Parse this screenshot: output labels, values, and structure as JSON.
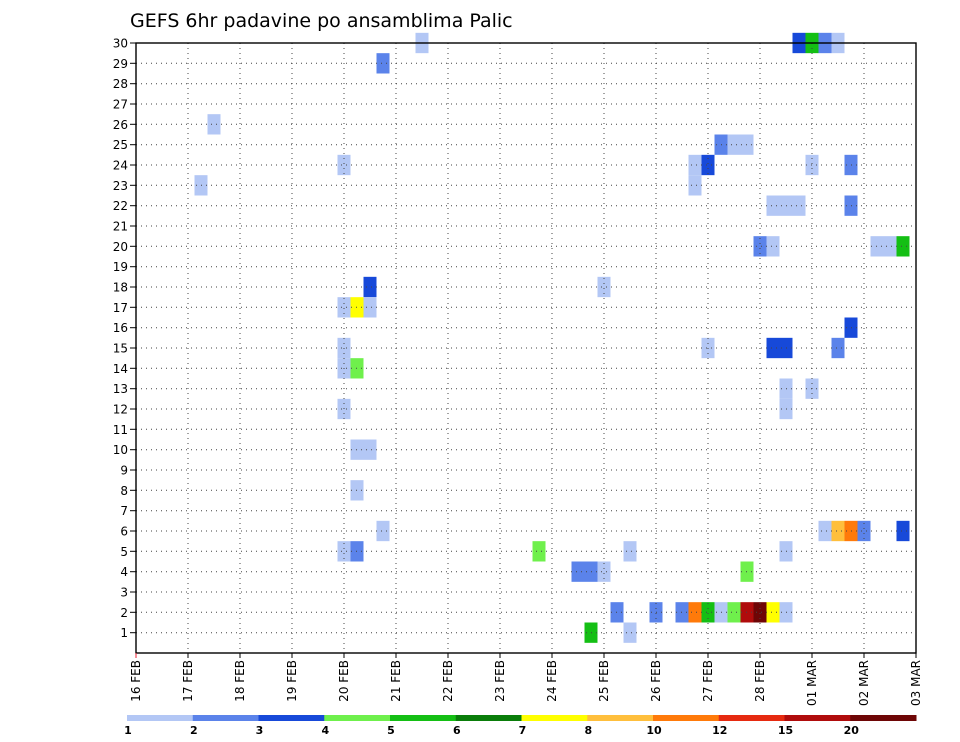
{
  "chart_data": {
    "type": "heatmap",
    "title": "GEFS 6hr padavine po ansamblima Palic",
    "x_start": "16 FEB",
    "x_end": "03 MAR",
    "x_tick_labels": [
      "16 FEB",
      "17 FEB",
      "18 FEB",
      "19 FEB",
      "20 FEB",
      "21 FEB",
      "22 FEB",
      "23 FEB",
      "24 FEB",
      "25 FEB",
      "26 FEB",
      "27 FEB",
      "28 FEB",
      "01 MAR",
      "02 MAR",
      "03 MAR"
    ],
    "y_tick_labels": [
      "1",
      "2",
      "3",
      "4",
      "5",
      "6",
      "7",
      "8",
      "9",
      "10",
      "11",
      "12",
      "13",
      "14",
      "15",
      "16",
      "17",
      "18",
      "19",
      "20",
      "21",
      "22",
      "23",
      "24",
      "25",
      "26",
      "27",
      "28",
      "29",
      "30"
    ],
    "ylim": [
      0,
      30
    ],
    "grid": true,
    "legend": {
      "placement": "bottom",
      "boundaries": [
        "1",
        "2",
        "3",
        "4",
        "5",
        "6",
        "7",
        "8",
        "10",
        "12",
        "15",
        "20"
      ],
      "colors": [
        "#b3c7f5",
        "#5b83ea",
        "#1749d9",
        "#6ff04c",
        "#14bf14",
        "#0a7d0a",
        "#ffff00",
        "#ffbf3c",
        "#ff7a0a",
        "#e62a10",
        "#b00c0c",
        "#6e0606"
      ]
    },
    "cells": [
      {
        "t": 22,
        "m": 30,
        "c": 0
      },
      {
        "t": 51,
        "m": 30,
        "c": 2
      },
      {
        "t": 52,
        "m": 30,
        "c": 4
      },
      {
        "t": 53,
        "m": 30,
        "c": 1
      },
      {
        "t": 54,
        "m": 30,
        "c": 0
      },
      {
        "t": 19,
        "m": 29,
        "c": 1
      },
      {
        "t": 6,
        "m": 26,
        "c": 0
      },
      {
        "t": 45,
        "m": 25,
        "c": 1
      },
      {
        "t": 46,
        "m": 25,
        "c": 0
      },
      {
        "t": 47,
        "m": 25,
        "c": 0
      },
      {
        "t": 16,
        "m": 24,
        "c": 0
      },
      {
        "t": 43,
        "m": 24,
        "c": 0
      },
      {
        "t": 44,
        "m": 24,
        "c": 2
      },
      {
        "t": 52,
        "m": 24,
        "c": 0
      },
      {
        "t": 55,
        "m": 24,
        "c": 1
      },
      {
        "t": 5,
        "m": 23,
        "c": 0
      },
      {
        "t": 43,
        "m": 23,
        "c": 0
      },
      {
        "t": 50,
        "m": 22,
        "c": 0
      },
      {
        "t": 51,
        "m": 22,
        "c": 0
      },
      {
        "t": 55,
        "m": 22,
        "c": 1
      },
      {
        "t": 49,
        "m": 22,
        "c": 0
      },
      {
        "t": 48,
        "m": 20,
        "c": 1
      },
      {
        "t": 49,
        "m": 20,
        "c": 0
      },
      {
        "t": 57,
        "m": 20,
        "c": 0
      },
      {
        "t": 58,
        "m": 20,
        "c": 0
      },
      {
        "t": 59,
        "m": 20,
        "c": 4
      },
      {
        "t": 18,
        "m": 18,
        "c": 2
      },
      {
        "t": 36,
        "m": 18,
        "c": 0
      },
      {
        "t": 16,
        "m": 17,
        "c": 0
      },
      {
        "t": 17,
        "m": 17,
        "c": 6
      },
      {
        "t": 18,
        "m": 17,
        "c": 0
      },
      {
        "t": 55,
        "m": 16,
        "c": 2
      },
      {
        "t": 16,
        "m": 15,
        "c": 0
      },
      {
        "t": 44,
        "m": 15,
        "c": 0
      },
      {
        "t": 49,
        "m": 15,
        "c": 2
      },
      {
        "t": 50,
        "m": 15,
        "c": 2
      },
      {
        "t": 54,
        "m": 15,
        "c": 1
      },
      {
        "t": 16,
        "m": 14,
        "c": 0
      },
      {
        "t": 17,
        "m": 14,
        "c": 3
      },
      {
        "t": 52,
        "m": 13,
        "c": 0
      },
      {
        "t": 50,
        "m": 13,
        "c": 0
      },
      {
        "t": 16,
        "m": 12,
        "c": 0
      },
      {
        "t": 50,
        "m": 12,
        "c": 0
      },
      {
        "t": 17,
        "m": 10,
        "c": 0
      },
      {
        "t": 18,
        "m": 10,
        "c": 0
      },
      {
        "t": 17,
        "m": 8,
        "c": 0
      },
      {
        "t": 19,
        "m": 6,
        "c": 0
      },
      {
        "t": 53,
        "m": 6,
        "c": 0
      },
      {
        "t": 54,
        "m": 6,
        "c": 7
      },
      {
        "t": 55,
        "m": 6,
        "c": 8
      },
      {
        "t": 56,
        "m": 6,
        "c": 1
      },
      {
        "t": 59,
        "m": 6,
        "c": 2
      },
      {
        "t": 16,
        "m": 5,
        "c": 0
      },
      {
        "t": 17,
        "m": 5,
        "c": 1
      },
      {
        "t": 31,
        "m": 5,
        "c": 3
      },
      {
        "t": 38,
        "m": 5,
        "c": 0
      },
      {
        "t": 50,
        "m": 5,
        "c": 0
      },
      {
        "t": 35,
        "m": 4,
        "c": 1
      },
      {
        "t": 36,
        "m": 4,
        "c": 0
      },
      {
        "t": 47,
        "m": 4,
        "c": 3
      },
      {
        "t": 34,
        "m": 4,
        "c": 1
      },
      {
        "t": 37,
        "m": 2,
        "c": 1
      },
      {
        "t": 40,
        "m": 2,
        "c": 1
      },
      {
        "t": 42,
        "m": 2,
        "c": 1
      },
      {
        "t": 43,
        "m": 2,
        "c": 8
      },
      {
        "t": 44,
        "m": 2,
        "c": 4
      },
      {
        "t": 45,
        "m": 2,
        "c": 0
      },
      {
        "t": 46,
        "m": 2,
        "c": 3
      },
      {
        "t": 47,
        "m": 2,
        "c": 10
      },
      {
        "t": 48,
        "m": 2,
        "c": 11
      },
      {
        "t": 49,
        "m": 2,
        "c": 6
      },
      {
        "t": 50,
        "m": 2,
        "c": 0
      },
      {
        "t": 35,
        "m": 1,
        "c": 4
      },
      {
        "t": 38,
        "m": 1,
        "c": 0
      }
    ]
  }
}
